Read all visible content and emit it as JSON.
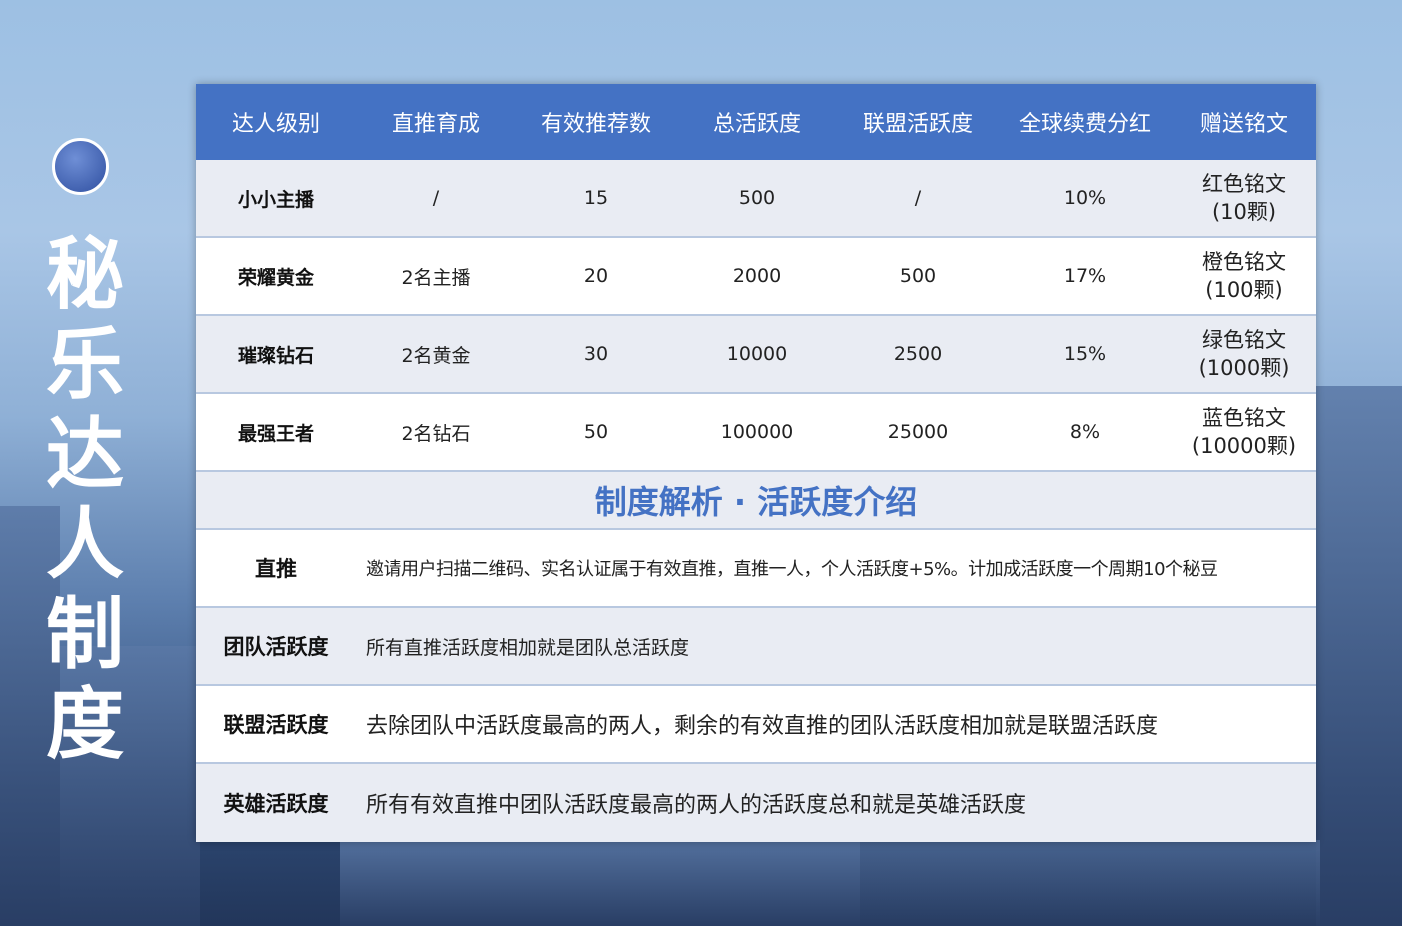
{
  "title": "秘乐达人制度",
  "header": [
    "达人级别",
    "直推育成",
    "有效推荐数",
    "总活跃度",
    "联盟活跃度",
    "全球续费分红",
    "赠送铭文"
  ],
  "rows": [
    [
      "小小主播",
      "/",
      "15",
      "500",
      "/",
      "10%",
      "红色铭文",
      "(10颗)"
    ],
    [
      "荣耀黄金",
      "2名主播",
      "20",
      "2000",
      "500",
      "17%",
      "橙色铭文",
      "(100颗)"
    ],
    [
      "璀璨钻石",
      "2名黄金",
      "30",
      "10000",
      "2500",
      "15%",
      "绿色铭文",
      "(1000颗)"
    ],
    [
      "最强王者",
      "2名钻石",
      "50",
      "100000",
      "25000",
      "8%",
      "蓝色铭文",
      "(10000颗)"
    ]
  ],
  "section_title": "制度解析 · 活跃度介绍",
  "definitions": [
    {
      "term": "直推",
      "text": "邀请用户扫描二维码、实名认证属于有效直推，直推一人，个人活跃度+5%。计加成活跃度一个周期10个秘豆"
    },
    {
      "term": "团队活跃度",
      "text": "所有直推活跃度相加就是团队总活跃度"
    },
    {
      "term": "联盟活跃度",
      "text": "去除团队中活跃度最高的两人，剩余的有效直推的团队活跃度相加就是联盟活跃度"
    },
    {
      "term": "英雄活跃度",
      "text": "所有有效直推中团队活跃度最高的两人的活跃度总和就是英雄活跃度"
    }
  ]
}
